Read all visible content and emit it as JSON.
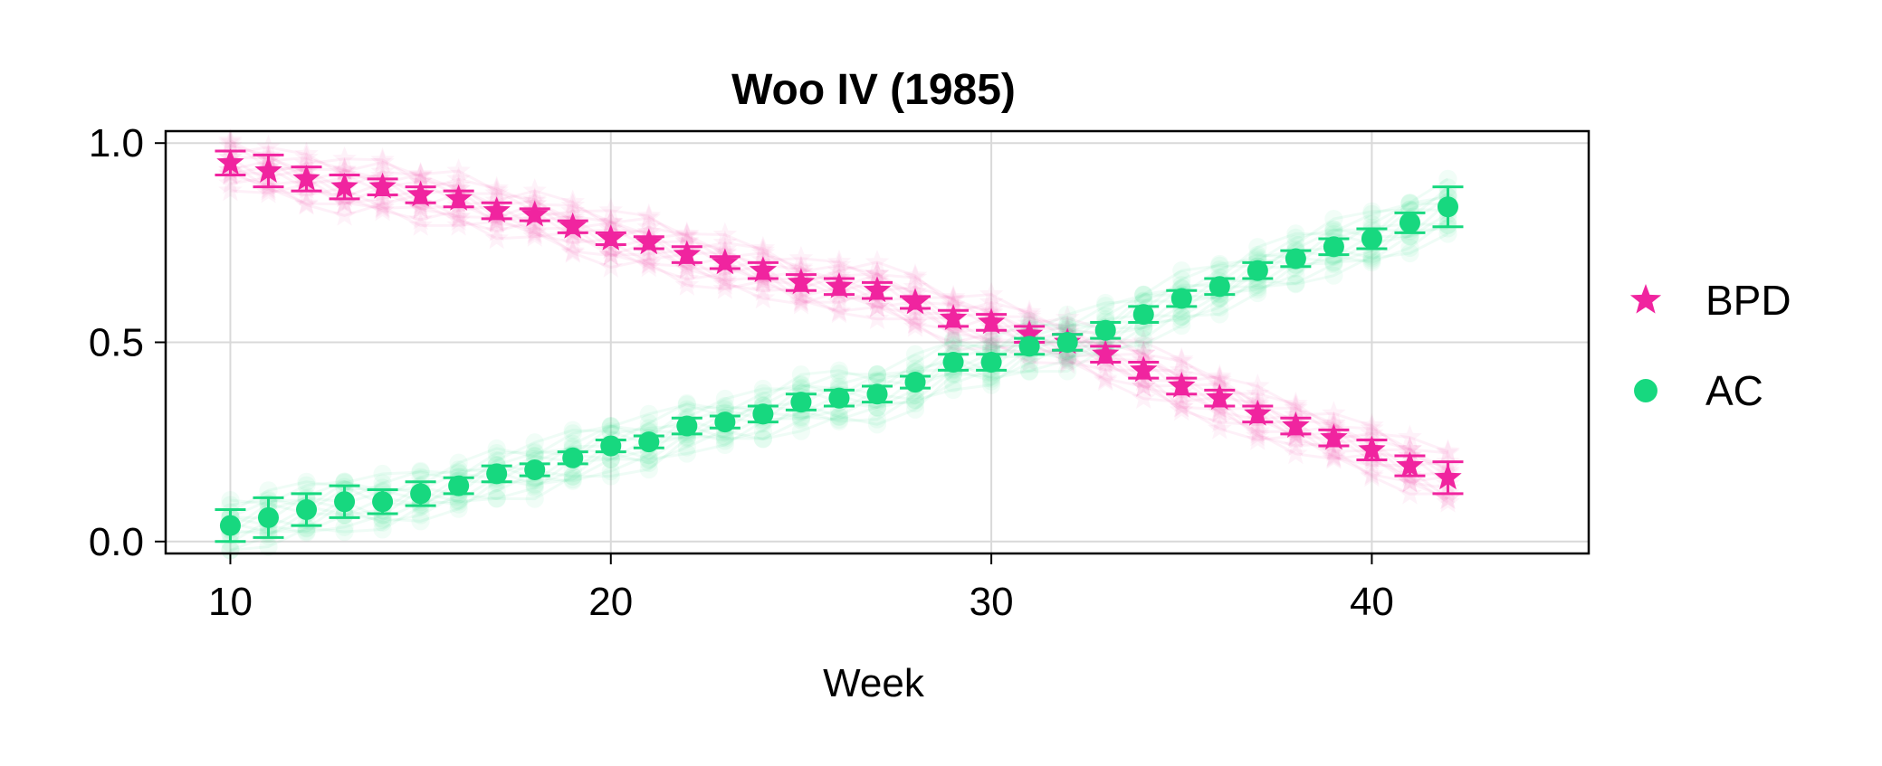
{
  "chart_data": {
    "type": "scatter",
    "title": "Woo IV (1985)",
    "xlabel": "Week",
    "ylabel": "",
    "xlim": [
      8.3,
      45.7
    ],
    "ylim": [
      -0.03,
      1.03
    ],
    "xticks": [
      "10",
      "20",
      "30",
      "40"
    ],
    "yticks": [
      "0.0",
      "0.5",
      "1.0"
    ],
    "grid": true,
    "legend_position": "right",
    "colors": {
      "BPD": "#f0249f",
      "AC": "#17d87f"
    },
    "series": [
      {
        "name": "BPD",
        "marker": "star",
        "x": [
          10,
          11,
          12,
          13,
          14,
          15,
          16,
          17,
          18,
          19,
          20,
          21,
          22,
          23,
          24,
          25,
          26,
          27,
          28,
          29,
          30,
          31,
          32,
          33,
          34,
          35,
          36,
          37,
          38,
          39,
          40,
          41,
          42
        ],
        "y": [
          0.95,
          0.93,
          0.91,
          0.89,
          0.89,
          0.87,
          0.86,
          0.83,
          0.82,
          0.79,
          0.76,
          0.75,
          0.72,
          0.7,
          0.68,
          0.65,
          0.64,
          0.63,
          0.6,
          0.56,
          0.55,
          0.52,
          0.5,
          0.47,
          0.43,
          0.39,
          0.36,
          0.32,
          0.29,
          0.26,
          0.23,
          0.19,
          0.16
        ],
        "err": [
          0.03,
          0.04,
          0.03,
          0.03,
          0.02,
          0.02,
          0.02,
          0.02,
          0.015,
          0.015,
          0.015,
          0.015,
          0.02,
          0.015,
          0.02,
          0.02,
          0.02,
          0.02,
          0.015,
          0.02,
          0.02,
          0.02,
          0.02,
          0.02,
          0.02,
          0.02,
          0.02,
          0.02,
          0.02,
          0.02,
          0.025,
          0.025,
          0.04
        ]
      },
      {
        "name": "AC",
        "marker": "circle",
        "x": [
          10,
          11,
          12,
          13,
          14,
          15,
          16,
          17,
          18,
          19,
          20,
          21,
          22,
          23,
          24,
          25,
          26,
          27,
          28,
          29,
          30,
          31,
          32,
          33,
          34,
          35,
          36,
          37,
          38,
          39,
          40,
          41,
          42
        ],
        "y": [
          0.04,
          0.06,
          0.08,
          0.1,
          0.1,
          0.12,
          0.14,
          0.17,
          0.18,
          0.21,
          0.24,
          0.25,
          0.29,
          0.3,
          0.32,
          0.35,
          0.36,
          0.37,
          0.4,
          0.45,
          0.45,
          0.49,
          0.5,
          0.53,
          0.57,
          0.61,
          0.64,
          0.68,
          0.71,
          0.74,
          0.76,
          0.8,
          0.84
        ],
        "err": [
          0.04,
          0.05,
          0.04,
          0.04,
          0.03,
          0.03,
          0.02,
          0.02,
          0.015,
          0.015,
          0.015,
          0.015,
          0.02,
          0.015,
          0.02,
          0.02,
          0.02,
          0.02,
          0.015,
          0.02,
          0.02,
          0.02,
          0.02,
          0.02,
          0.02,
          0.02,
          0.02,
          0.02,
          0.02,
          0.02,
          0.025,
          0.025,
          0.05
        ]
      }
    ]
  }
}
